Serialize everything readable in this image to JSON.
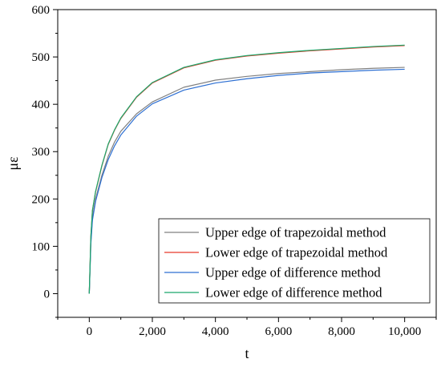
{
  "chart_data": {
    "type": "line",
    "xlabel": "t",
    "ylabel": "με",
    "xlim": [
      -1000,
      11000
    ],
    "ylim": [
      -50,
      600
    ],
    "xticks": [
      0,
      2000,
      4000,
      6000,
      8000,
      10000
    ],
    "xtick_labels": [
      "0",
      "2,000",
      "4,000",
      "6,000",
      "8,000",
      "10,000"
    ],
    "yticks": [
      0,
      100,
      200,
      300,
      400,
      500,
      600
    ],
    "ytick_labels": [
      "0",
      "100",
      "200",
      "300",
      "400",
      "500",
      "600"
    ],
    "grid": false,
    "legend_position": "bottom-right",
    "series": [
      {
        "name": "Upper edge of trapezoidal method",
        "color": "#808080",
        "x": [
          0,
          50,
          100,
          200,
          400,
          600,
          800,
          1000,
          1500,
          2000,
          3000,
          4000,
          5000,
          6000,
          7000,
          8000,
          9000,
          10000
        ],
        "y": [
          0,
          110,
          160,
          200,
          250,
          290,
          320,
          343,
          380,
          405,
          436,
          451,
          459,
          465,
          469,
          473,
          476,
          478
        ]
      },
      {
        "name": "Lower edge of trapezoidal method",
        "color": "#e8392b",
        "x": [
          0,
          50,
          100,
          200,
          400,
          600,
          800,
          1000,
          1500,
          2000,
          3000,
          4000,
          5000,
          6000,
          7000,
          8000,
          9000,
          10000
        ],
        "y": [
          0,
          120,
          175,
          215,
          270,
          315,
          345,
          370,
          415,
          445,
          477,
          493,
          502,
          508,
          513,
          517,
          521,
          524
        ]
      },
      {
        "name": "Upper edge of difference method",
        "color": "#2d6fd2",
        "x": [
          0,
          50,
          100,
          200,
          400,
          600,
          800,
          1000,
          1500,
          2000,
          3000,
          4000,
          5000,
          6000,
          7000,
          8000,
          9000,
          10000
        ],
        "y": [
          0,
          105,
          155,
          195,
          245,
          283,
          312,
          335,
          375,
          401,
          430,
          445,
          454,
          461,
          466,
          469,
          472,
          474
        ]
      },
      {
        "name": "Lower edge of difference method",
        "color": "#1aa86b",
        "x": [
          0,
          50,
          100,
          200,
          400,
          600,
          800,
          1000,
          1500,
          2000,
          3000,
          4000,
          5000,
          6000,
          7000,
          8000,
          9000,
          10000
        ],
        "y": [
          0,
          121,
          176,
          216,
          271,
          316,
          346,
          371,
          416,
          446,
          478,
          494,
          503,
          509,
          514,
          518,
          522,
          525
        ]
      }
    ]
  }
}
